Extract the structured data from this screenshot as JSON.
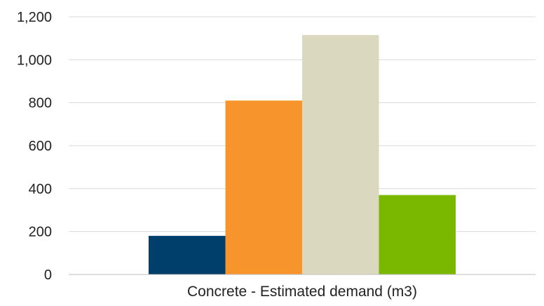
{
  "chart_data": {
    "type": "bar",
    "categories": [
      "Concrete - Estimated demand (m3)"
    ],
    "series": [
      {
        "values": [
          180
        ],
        "color": "#003f6b"
      },
      {
        "values": [
          810
        ],
        "color": "#f7942c"
      },
      {
        "values": [
          1115
        ],
        "color": "#dad8bf"
      },
      {
        "values": [
          370
        ],
        "color": "#7ab800"
      }
    ],
    "ylim": [
      0,
      1200
    ],
    "yticks": [
      {
        "value": 0,
        "label": "0"
      },
      {
        "value": 200,
        "label": "200"
      },
      {
        "value": 400,
        "label": "400"
      },
      {
        "value": 600,
        "label": "600"
      },
      {
        "value": 800,
        "label": "800"
      },
      {
        "value": 1000,
        "label": "1,000"
      },
      {
        "value": 1200,
        "label": "1,200"
      }
    ],
    "grid": true,
    "legend": "none"
  }
}
